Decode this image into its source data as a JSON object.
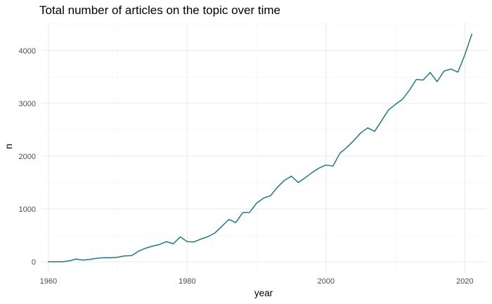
{
  "chart_data": {
    "type": "line",
    "title": "Total number of articles on the topic over time",
    "xlabel": "year",
    "ylabel": "n",
    "xlim": [
      1958.9,
      2023.1
    ],
    "ylim": [
      -215,
      4530
    ],
    "x_ticks": [
      1960,
      1980,
      2000,
      2020
    ],
    "y_ticks": [
      0,
      1000,
      2000,
      3000,
      4000
    ],
    "x_minor_ticks": [
      1970,
      1990,
      2010
    ],
    "y_minor_ticks": [
      500,
      1500,
      2500,
      3500,
      4500
    ],
    "x_tick_labels": [
      "1960",
      "1980",
      "2000",
      "2020"
    ],
    "y_tick_labels": [
      "0",
      "1000",
      "2000",
      "3000",
      "4000"
    ],
    "grid": true,
    "line_color": "#1f7a80",
    "series": [
      {
        "x": [
          1960,
          1961,
          1962,
          1963,
          1964,
          1965,
          1966,
          1967,
          1968,
          1969,
          1970,
          1971,
          1972,
          1973,
          1974,
          1975,
          1976,
          1977,
          1978,
          1979,
          1980,
          1981,
          1982,
          1983,
          1984,
          1985,
          1986,
          1987,
          1988,
          1989,
          1990,
          1991,
          1992,
          1993,
          1994,
          1995,
          1996,
          1997,
          1998,
          1999,
          2000,
          2001,
          2002,
          2003,
          2004,
          2005,
          2006,
          2007,
          2008,
          2009,
          2010,
          2011,
          2012,
          2013,
          2014,
          2015,
          2016,
          2017,
          2018,
          2019,
          2020,
          2021
        ],
        "values": [
          0,
          0,
          0,
          15,
          50,
          30,
          45,
          65,
          75,
          75,
          85,
          110,
          115,
          200,
          255,
          295,
          325,
          380,
          340,
          470,
          380,
          375,
          430,
          475,
          545,
          670,
          800,
          740,
          930,
          935,
          1110,
          1205,
          1250,
          1410,
          1540,
          1620,
          1500,
          1590,
          1690,
          1775,
          1830,
          1810,
          2055,
          2165,
          2295,
          2440,
          2535,
          2470,
          2670,
          2875,
          2980,
          3075,
          3245,
          3450,
          3440,
          3585,
          3410,
          3610,
          3650,
          3590,
          3920,
          4310
        ]
      }
    ]
  }
}
